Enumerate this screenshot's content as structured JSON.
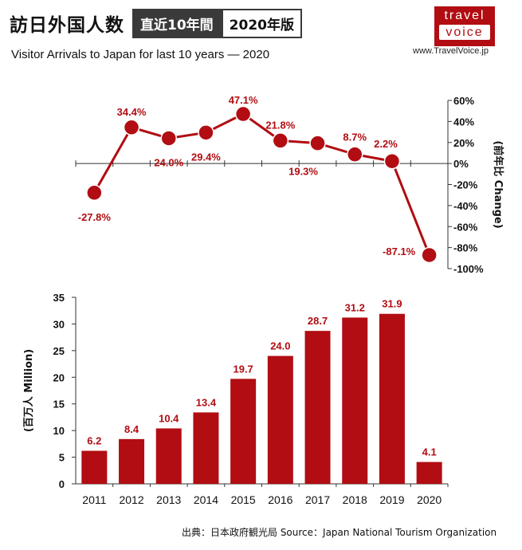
{
  "header": {
    "title_jp": "訪日外国人数",
    "badge_recent": "直近10年間",
    "badge_year": "2020年版",
    "subtitle": "Visitor Arrivals to Japan for last 10 years — 2020"
  },
  "logo": {
    "line1": "travel",
    "line2": "voice",
    "url": "www.TravelVoice.jp"
  },
  "colors": {
    "series": "#b10d12",
    "axis": "#333333"
  },
  "chart_data": [
    {
      "type": "line",
      "categories": [
        "2011",
        "2012",
        "2013",
        "2014",
        "2015",
        "2016",
        "2017",
        "2018",
        "2019",
        "2020"
      ],
      "values": [
        -27.8,
        34.4,
        24.0,
        29.4,
        47.1,
        21.8,
        19.3,
        8.7,
        2.2,
        -87.1
      ],
      "labels": [
        "-27.8%",
        "34.4%",
        "24.0%",
        "29.4%",
        "47.1%",
        "21.8%",
        "19.3%",
        "8.7%",
        "2.2%",
        "-87.1%"
      ],
      "ylabel": "(前年比 Change)",
      "ylim": [
        -100,
        60
      ],
      "yticks": [
        60,
        40,
        20,
        0,
        -20,
        -40,
        -60,
        -80,
        -100
      ],
      "ytick_labels": [
        "60%",
        "40%",
        "20%",
        "0%",
        "-20%",
        "-40%",
        "-60%",
        "-80%",
        "-100%"
      ],
      "grid": false
    },
    {
      "type": "bar",
      "categories": [
        "2011",
        "2012",
        "2013",
        "2014",
        "2015",
        "2016",
        "2017",
        "2018",
        "2019",
        "2020"
      ],
      "values": [
        6.2,
        8.4,
        10.4,
        13.4,
        19.7,
        24.0,
        28.7,
        31.2,
        31.9,
        4.1
      ],
      "labels": [
        "6.2",
        "8.4",
        "10.4",
        "13.4",
        "19.7",
        "24.0",
        "28.7",
        "31.2",
        "31.9",
        "4.1"
      ],
      "ylabel": "(百万人 Million)",
      "ylim": [
        0,
        35
      ],
      "yticks": [
        0,
        5,
        10,
        15,
        20,
        25,
        30,
        35
      ],
      "grid": false
    }
  ],
  "source": "出典：日本政府観光局  Source：Japan National Tourism Organization"
}
